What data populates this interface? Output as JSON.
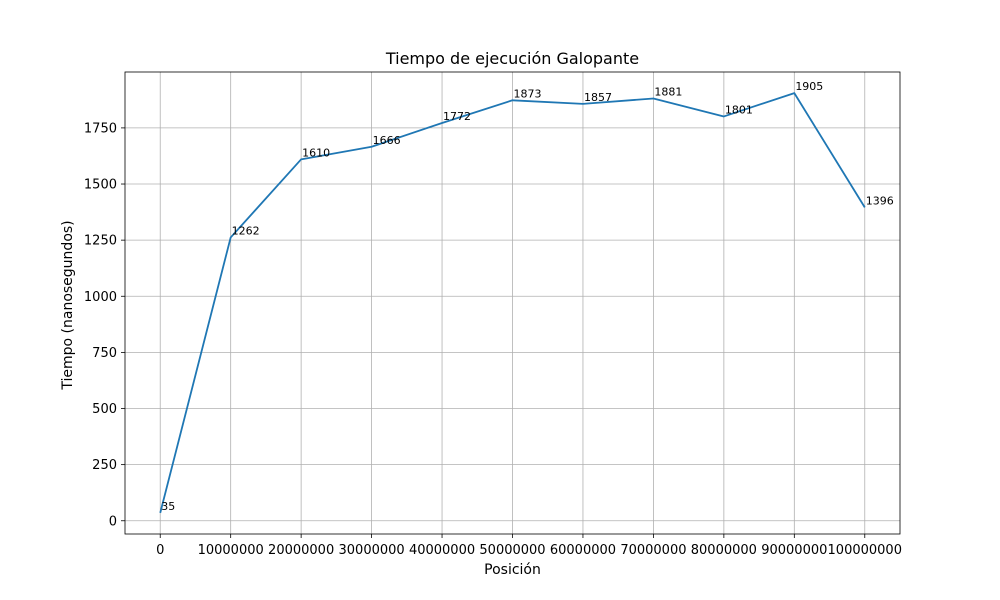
{
  "chart_data": {
    "type": "line",
    "title": "Tiempo de ejecución Galopante",
    "xlabel": "Posición",
    "ylabel": "Tiempo (nanosegundos)",
    "x": [
      0,
      10000000,
      20000000,
      30000000,
      40000000,
      50000000,
      60000000,
      70000000,
      80000000,
      90000000,
      100000000
    ],
    "x_tick_labels": [
      "0",
      "10000000",
      "20000000",
      "30000000",
      "40000000",
      "50000000",
      "60000000",
      "70000000",
      "80000000",
      "90000000",
      "100000000"
    ],
    "y_ticks": [
      0,
      250,
      500,
      750,
      1000,
      1250,
      1500,
      1750
    ],
    "y_tick_labels": [
      "0",
      "250",
      "500",
      "750",
      "1000",
      "1250",
      "1500",
      "1750"
    ],
    "series": [
      {
        "values": [
          35,
          1262,
          1610,
          1666,
          1772,
          1873,
          1857,
          1881,
          1801,
          1905,
          1396
        ],
        "labels": [
          "35",
          "1262",
          "1610",
          "1666",
          "1772",
          "1873",
          "1857",
          "1881",
          "1801",
          "1905",
          "1396"
        ],
        "color": "#1f77b4"
      }
    ],
    "xlim": [
      -5000000,
      105000000
    ],
    "ylim": [
      -59,
      1999
    ],
    "grid": true
  }
}
